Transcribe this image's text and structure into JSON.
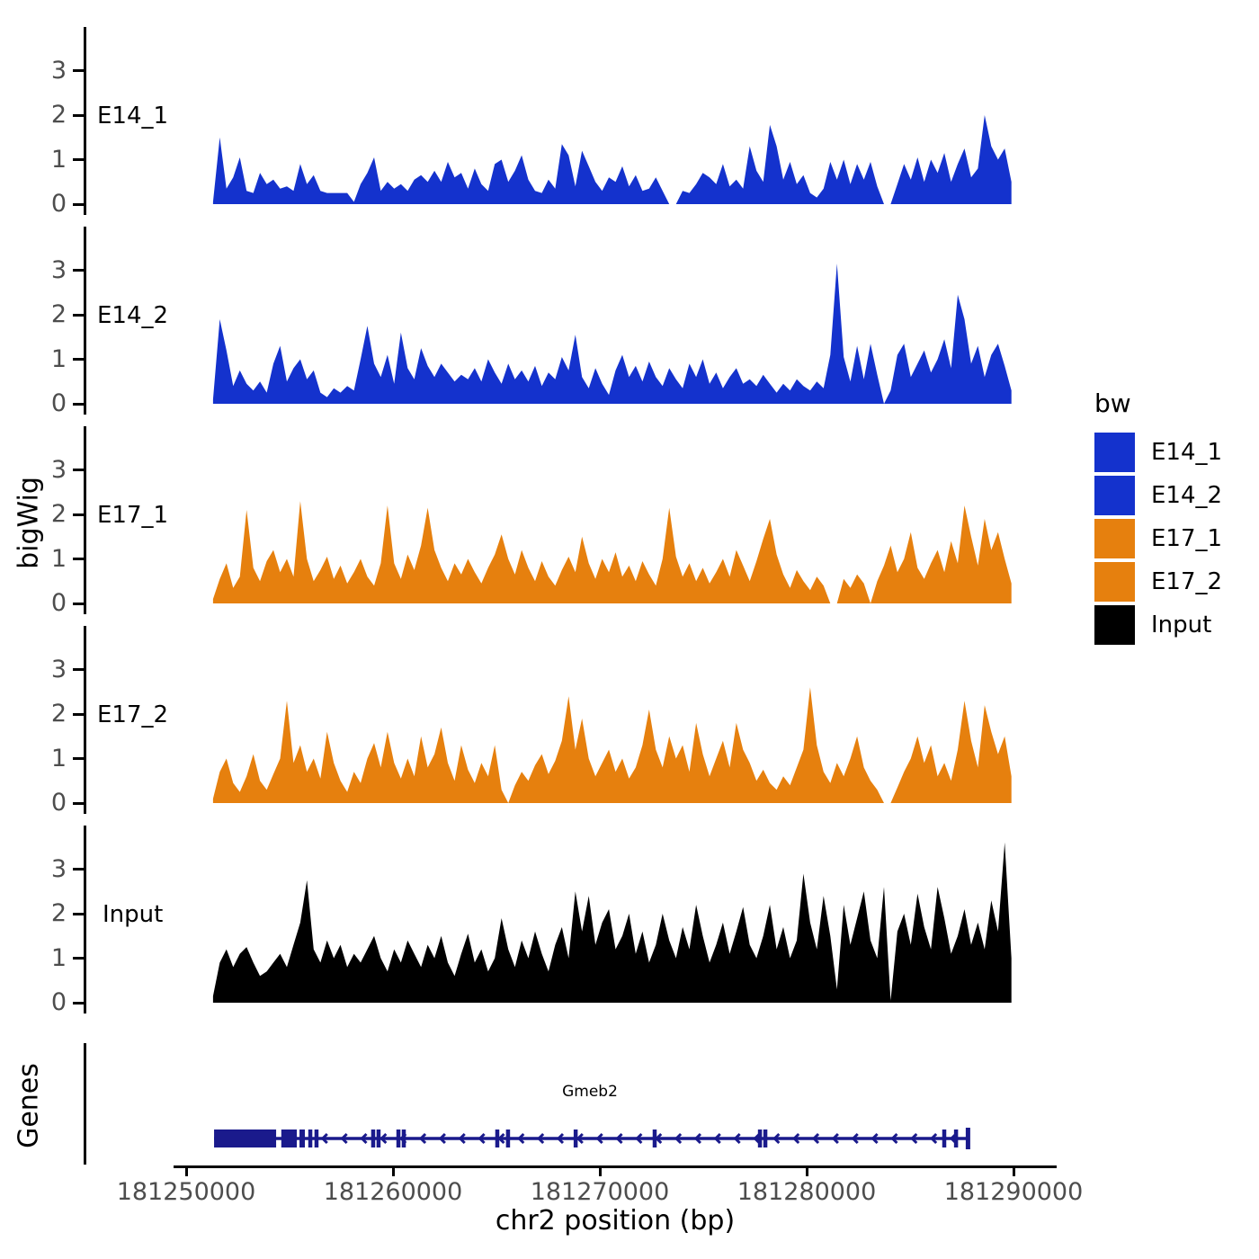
{
  "figure": {
    "ylab": "bigWig",
    "genes_label": "Genes",
    "legend": {
      "title": "bw",
      "items": [
        {
          "label": "E14_1",
          "color": "#1432cd"
        },
        {
          "label": "E14_2",
          "color": "#1432cd"
        },
        {
          "label": "E17_1",
          "color": "#e6800e"
        },
        {
          "label": "E17_2",
          "color": "#e6800e"
        },
        {
          "label": "Input",
          "color": "#000000"
        }
      ]
    }
  },
  "chart_data": {
    "type": "area",
    "title": "",
    "xlabel": "chr2 position (bp)",
    "ylabel": "bigWig",
    "grid": false,
    "legend_position": "right",
    "xlim": [
      181249400,
      181292100
    ],
    "ylim_per_track": [
      0,
      3.9
    ],
    "y_ticks": [
      0,
      1,
      2,
      3
    ],
    "x_ticks": [
      181250000,
      181260000,
      181270000,
      181280000,
      181290000
    ],
    "x_tick_labels": [
      "181250000",
      "181260000",
      "181270000",
      "181280000",
      "181290000"
    ],
    "signal_start_bp": 181251300,
    "signal_end_bp": 181289900,
    "tracks": [
      {
        "name": "E14_1",
        "color": "#1432cd",
        "values": [
          0.05,
          1.5,
          0.35,
          0.6,
          1.05,
          0.3,
          0.25,
          0.7,
          0.45,
          0.55,
          0.35,
          0.4,
          0.3,
          0.9,
          0.45,
          0.65,
          0.3,
          0.25,
          0.25,
          0.25,
          0.25,
          0.05,
          0.45,
          0.7,
          1.05,
          0.3,
          0.5,
          0.35,
          0.45,
          0.3,
          0.55,
          0.65,
          0.5,
          0.75,
          0.5,
          0.95,
          0.6,
          0.7,
          0.35,
          0.8,
          0.45,
          0.3,
          0.9,
          1.0,
          0.5,
          0.75,
          1.1,
          0.55,
          0.3,
          0.25,
          0.55,
          0.35,
          1.35,
          1.1,
          0.4,
          1.2,
          0.85,
          0.5,
          0.3,
          0.6,
          0.5,
          0.85,
          0.4,
          0.65,
          0.3,
          0.35,
          0.6,
          0.3,
          0.0,
          0.0,
          0.3,
          0.25,
          0.45,
          0.7,
          0.6,
          0.45,
          0.9,
          0.4,
          0.55,
          0.35,
          1.3,
          0.75,
          0.5,
          1.78,
          1.3,
          0.55,
          0.95,
          0.45,
          0.65,
          0.25,
          0.15,
          0.35,
          0.95,
          0.55,
          1.0,
          0.45,
          0.9,
          0.55,
          0.95,
          0.4,
          0.0,
          0.0,
          0.45,
          0.9,
          0.55,
          1.05,
          0.5,
          1.0,
          0.7,
          1.15,
          0.5,
          0.9,
          1.25,
          0.6,
          0.8,
          2.0,
          1.3,
          1.0,
          1.25,
          0.5
        ]
      },
      {
        "name": "E14_2",
        "color": "#1432cd",
        "values": [
          0.1,
          1.9,
          1.2,
          0.4,
          0.75,
          0.45,
          0.3,
          0.5,
          0.25,
          0.9,
          1.3,
          0.5,
          0.8,
          1.0,
          0.55,
          0.75,
          0.25,
          0.15,
          0.35,
          0.25,
          0.4,
          0.3,
          1.0,
          1.75,
          0.9,
          0.6,
          1.1,
          0.45,
          1.6,
          0.8,
          0.55,
          1.25,
          0.85,
          0.6,
          0.9,
          0.7,
          0.5,
          0.65,
          0.55,
          0.8,
          0.5,
          1.0,
          0.7,
          0.45,
          0.9,
          0.55,
          0.75,
          0.5,
          0.85,
          0.4,
          0.7,
          0.55,
          1.05,
          0.75,
          1.55,
          0.6,
          0.35,
          0.8,
          0.45,
          0.2,
          0.75,
          1.1,
          0.6,
          0.85,
          0.5,
          0.95,
          0.6,
          0.4,
          0.8,
          0.55,
          0.35,
          0.9,
          0.6,
          1.0,
          0.45,
          0.7,
          0.35,
          0.6,
          0.8,
          0.45,
          0.55,
          0.4,
          0.65,
          0.45,
          0.25,
          0.45,
          0.3,
          0.55,
          0.4,
          0.3,
          0.5,
          0.35,
          1.1,
          3.15,
          1.05,
          0.5,
          1.3,
          0.55,
          1.35,
          0.65,
          0.0,
          0.3,
          1.1,
          1.35,
          0.6,
          0.9,
          1.2,
          0.7,
          1.0,
          1.45,
          0.8,
          2.45,
          1.9,
          0.9,
          1.3,
          0.6,
          1.1,
          1.35,
          0.85,
          0.3
        ]
      },
      {
        "name": "E17_1",
        "color": "#e6800e",
        "values": [
          0.1,
          0.55,
          0.9,
          0.35,
          0.6,
          2.1,
          0.8,
          0.5,
          0.95,
          1.2,
          0.7,
          1.0,
          0.6,
          2.3,
          1.0,
          0.5,
          0.75,
          1.05,
          0.55,
          0.85,
          0.45,
          0.7,
          1.0,
          0.6,
          0.4,
          0.9,
          2.2,
          0.9,
          0.55,
          1.1,
          0.75,
          1.3,
          2.15,
          1.2,
          0.8,
          0.5,
          0.9,
          0.65,
          1.0,
          0.7,
          0.45,
          0.8,
          1.1,
          1.55,
          1.0,
          0.65,
          1.2,
          0.8,
          0.5,
          0.95,
          0.6,
          0.4,
          0.75,
          1.05,
          0.7,
          1.5,
          0.9,
          0.55,
          1.0,
          0.7,
          1.15,
          0.6,
          0.85,
          0.5,
          0.95,
          0.65,
          0.4,
          1.0,
          2.15,
          1.05,
          0.6,
          0.9,
          0.5,
          0.8,
          0.45,
          0.7,
          1.0,
          0.6,
          1.2,
          0.85,
          0.5,
          0.95,
          1.45,
          1.9,
          1.1,
          0.65,
          0.35,
          0.75,
          0.5,
          0.3,
          0.6,
          0.4,
          0.0,
          0.0,
          0.55,
          0.35,
          0.65,
          0.45,
          0.0,
          0.5,
          0.85,
          1.3,
          0.7,
          1.0,
          1.6,
          0.8,
          0.55,
          0.9,
          1.2,
          0.7,
          1.4,
          0.9,
          2.2,
          1.5,
          0.85,
          1.9,
          1.2,
          1.6,
          1.0,
          0.45
        ]
      },
      {
        "name": "E17_2",
        "color": "#e6800e",
        "values": [
          0.1,
          0.7,
          1.0,
          0.45,
          0.25,
          0.6,
          1.1,
          0.5,
          0.3,
          0.65,
          1.0,
          2.3,
          0.9,
          1.3,
          0.7,
          1.0,
          0.55,
          1.6,
          0.9,
          0.5,
          0.25,
          0.7,
          0.45,
          1.0,
          1.35,
          0.8,
          1.6,
          0.9,
          0.55,
          1.0,
          0.6,
          1.5,
          0.8,
          1.1,
          1.7,
          0.9,
          0.5,
          1.3,
          0.75,
          0.45,
          0.9,
          0.6,
          1.3,
          0.3,
          0.0,
          0.4,
          0.7,
          0.5,
          0.85,
          1.1,
          0.65,
          0.95,
          1.4,
          2.4,
          1.2,
          1.9,
          1.0,
          0.6,
          0.9,
          1.2,
          0.7,
          1.0,
          0.55,
          0.8,
          1.3,
          2.1,
          1.2,
          0.8,
          1.5,
          1.0,
          1.3,
          0.7,
          1.8,
          1.1,
          0.6,
          1.0,
          1.4,
          0.8,
          1.8,
          1.2,
          0.9,
          0.5,
          0.75,
          0.45,
          0.3,
          0.6,
          0.4,
          0.8,
          1.2,
          2.6,
          1.3,
          0.7,
          0.45,
          0.9,
          0.6,
          1.0,
          1.5,
          0.8,
          0.5,
          0.3,
          0.0,
          0.0,
          0.35,
          0.7,
          1.0,
          1.5,
          0.9,
          1.3,
          0.6,
          0.9,
          0.5,
          1.2,
          2.3,
          1.4,
          0.8,
          2.2,
          1.6,
          1.1,
          1.5,
          0.6
        ]
      },
      {
        "name": "Input",
        "color": "#000000",
        "values": [
          0.15,
          0.9,
          1.2,
          0.8,
          1.1,
          1.25,
          0.9,
          0.6,
          0.7,
          0.9,
          1.1,
          0.8,
          1.3,
          1.8,
          2.75,
          1.2,
          0.9,
          1.4,
          1.0,
          1.3,
          0.8,
          1.1,
          0.9,
          1.2,
          1.5,
          1.0,
          0.7,
          1.2,
          0.9,
          1.4,
          1.1,
          0.8,
          1.3,
          1.0,
          1.5,
          0.9,
          0.6,
          1.1,
          1.55,
          0.9,
          1.2,
          0.7,
          1.0,
          1.9,
          1.2,
          0.8,
          1.4,
          1.0,
          1.6,
          1.1,
          0.7,
          1.3,
          1.7,
          1.0,
          2.5,
          1.6,
          2.4,
          1.3,
          1.8,
          2.1,
          1.2,
          1.5,
          2.0,
          1.1,
          1.6,
          0.9,
          1.3,
          2.0,
          1.4,
          1.0,
          1.7,
          1.2,
          2.2,
          1.5,
          0.9,
          1.3,
          1.8,
          1.1,
          1.6,
          2.15,
          1.3,
          1.0,
          1.5,
          2.2,
          1.2,
          1.7,
          1.0,
          1.4,
          2.9,
          1.8,
          1.2,
          2.4,
          1.5,
          0.3,
          2.2,
          1.3,
          1.9,
          2.5,
          1.4,
          1.0,
          2.6,
          0.05,
          1.6,
          2.0,
          1.3,
          2.45,
          1.7,
          1.2,
          2.6,
          1.9,
          1.1,
          1.5,
          2.1,
          1.3,
          1.8,
          1.2,
          2.3,
          1.6,
          3.6,
          1.0
        ]
      }
    ],
    "gene_track": {
      "gene": {
        "name": "Gmeb2",
        "strand": "-",
        "start_bp": 181251350,
        "end_bp": 181287800,
        "color": "#1a1a8c",
        "boxes": [
          {
            "start": 181251350,
            "end": 181254350
          },
          {
            "start": 181254600,
            "end": 181255350
          },
          {
            "start": 181255480,
            "end": 181255740
          }
        ],
        "exon_marks": [
          181256000,
          181256300,
          181259040,
          181259300,
          181260260,
          181260520,
          181265040,
          181265560,
          181268830,
          181272650,
          181277740,
          181278000,
          181286650,
          181287220
        ],
        "arrow_start_bp": 181256600,
        "arrow_end_bp": 181287200,
        "arrow_step_bp": 950
      }
    }
  }
}
